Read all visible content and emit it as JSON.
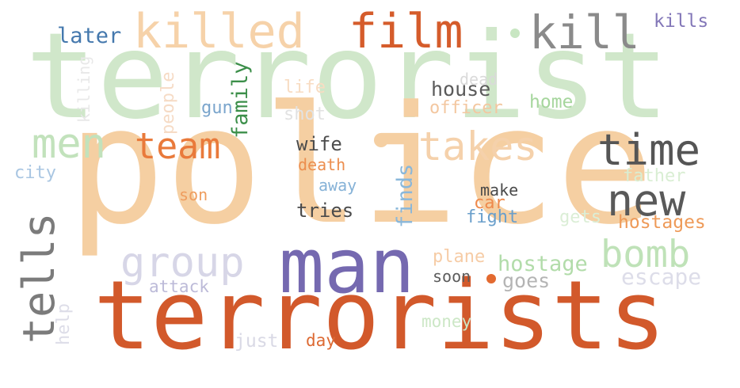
{
  "words": [
    {
      "text": "terrorist",
      "color": "#d0e7ca"
    },
    {
      "text": "police",
      "color": "#f5cfa2"
    },
    {
      "text": "terrorists",
      "color": "#d2592b"
    },
    {
      "text": "man",
      "color": "#7569b0"
    },
    {
      "text": "killed",
      "color": "#f6d2a9"
    },
    {
      "text": "film",
      "color": "#d55c2b"
    },
    {
      "text": "kill",
      "color": "#8a8a8a"
    },
    {
      "text": "kills",
      "color": "#8377b8"
    },
    {
      "text": "later",
      "color": "#4478ad"
    },
    {
      "text": "men",
      "color": "#c2e2bc"
    },
    {
      "text": "team",
      "color": "#e97a3b"
    },
    {
      "text": "takes",
      "color": "#f5d1ab"
    },
    {
      "text": "time",
      "color": "#555555"
    },
    {
      "text": "new",
      "color": "#595959"
    },
    {
      "text": "tells",
      "color": "#7b7b7b"
    },
    {
      "text": "group",
      "color": "#d7d6e7"
    },
    {
      "text": "bomb",
      "color": "#bfe2b8"
    },
    {
      "text": "house",
      "color": "#5a5a5a"
    },
    {
      "text": "dead",
      "color": "#dadada"
    },
    {
      "text": "officer",
      "color": "#f3c7a0"
    },
    {
      "text": "home",
      "color": "#a6d69d"
    },
    {
      "text": "life",
      "color": "#f8dcc2"
    },
    {
      "text": "shot",
      "color": "#e2e2e2"
    },
    {
      "text": "gun",
      "color": "#7aa5cc"
    },
    {
      "text": "family",
      "color": "#3c8f4a"
    },
    {
      "text": "people",
      "color": "#f6dbc5"
    },
    {
      "text": "killing",
      "color": "#e8e8e8"
    },
    {
      "text": "wife",
      "color": "#4d4d4d"
    },
    {
      "text": "death",
      "color": "#ec8e4e"
    },
    {
      "text": "away",
      "color": "#86b2d7"
    },
    {
      "text": "tries",
      "color": "#4a4a4a"
    },
    {
      "text": "finds",
      "color": "#89b7da"
    },
    {
      "text": "make",
      "color": "#4a4a4a"
    },
    {
      "text": "car",
      "color": "#ee8a4c"
    },
    {
      "text": "fight",
      "color": "#6a9fcb"
    },
    {
      "text": "gets",
      "color": "#dbeed6"
    },
    {
      "text": "father",
      "color": "#d9eed3"
    },
    {
      "text": "hostages",
      "color": "#ee9a58"
    },
    {
      "text": "city",
      "color": "#a9c6e2"
    },
    {
      "text": "son",
      "color": "#ef9d5e"
    },
    {
      "text": "hostage",
      "color": "#b2dcaa"
    },
    {
      "text": "plane",
      "color": "#f6cca6"
    },
    {
      "text": "soon",
      "color": "#5c5c5c"
    },
    {
      "text": "goes",
      "color": "#b4b4b4"
    },
    {
      "text": "escape",
      "color": "#dddde9"
    },
    {
      "text": "attack",
      "color": "#bcbad8"
    },
    {
      "text": "help",
      "color": "#dddde8"
    },
    {
      "text": "money",
      "color": "#cce7c6"
    },
    {
      "text": "just",
      "color": "#d9d9e5"
    },
    {
      "text": "day",
      "color": "#dd6a33"
    }
  ]
}
